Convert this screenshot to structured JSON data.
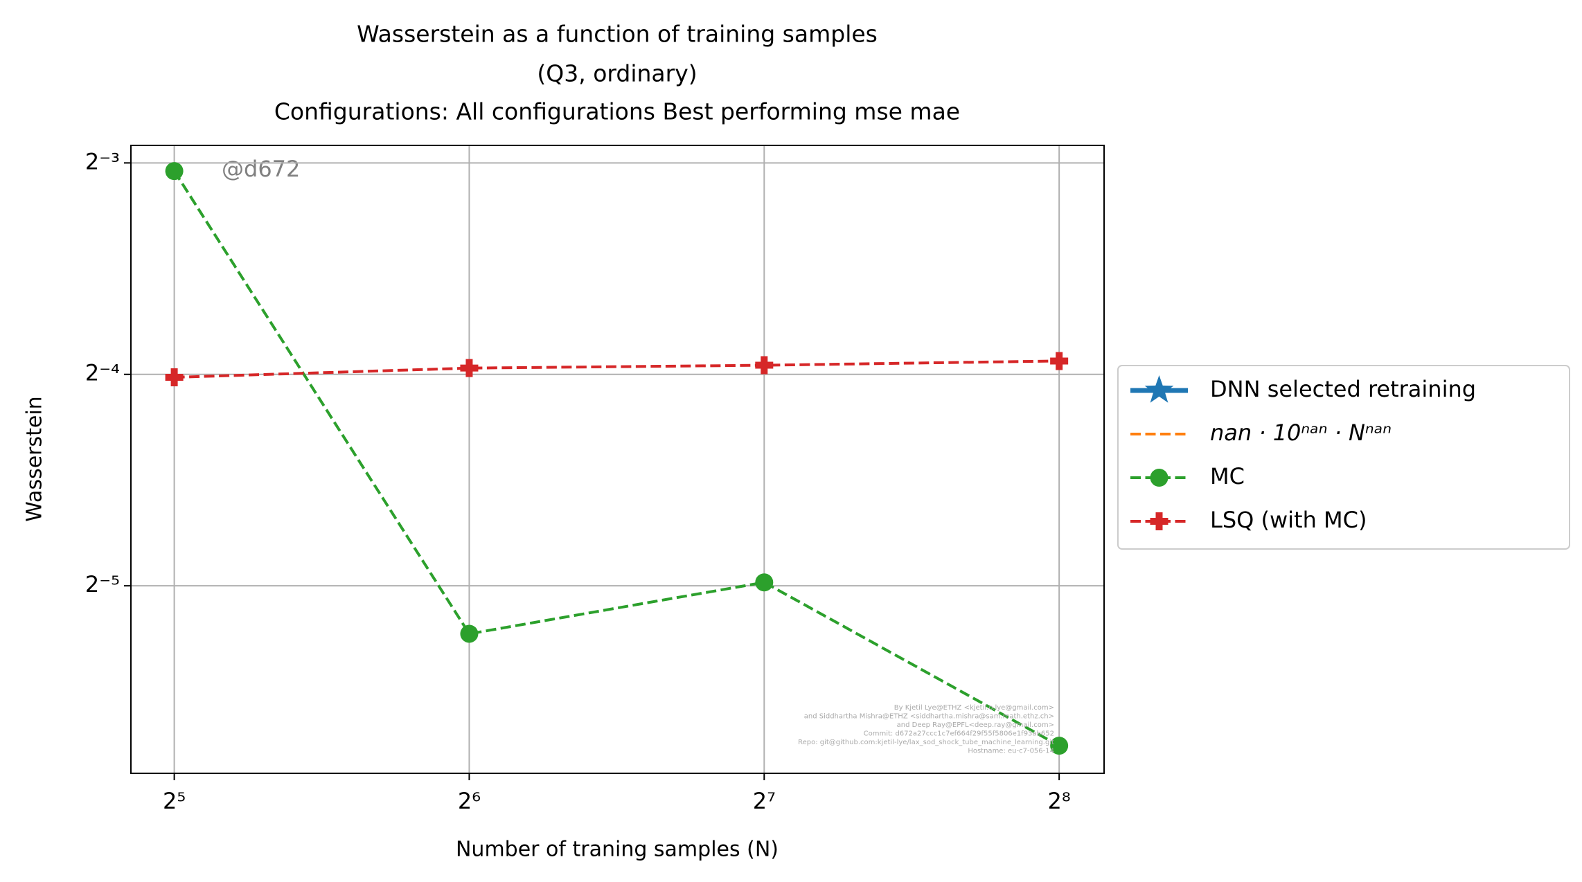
{
  "chart_data": {
    "type": "line",
    "title": [
      "Wasserstein as a function of training samples",
      "(Q3, ordinary)",
      "Configurations: All configurations Best performing mse mae"
    ],
    "xlabel": "Number of traning samples (N)",
    "ylabel": "Wasserstein",
    "x": [
      32,
      64,
      128,
      256
    ],
    "xscale": "log",
    "yscale": "log",
    "logbase": 2,
    "xlim": [
      28.9,
      284.5
    ],
    "ylim": [
      0.0169,
      0.1324
    ],
    "xticks": [
      {
        "value": 32,
        "label": "2⁵"
      },
      {
        "value": 64,
        "label": "2⁶"
      },
      {
        "value": 128,
        "label": "2⁷"
      },
      {
        "value": 256,
        "label": "2⁸"
      }
    ],
    "yticks": [
      {
        "value": 0.125,
        "label": "2⁻³"
      },
      {
        "value": 0.0625,
        "label": "2⁻⁴"
      },
      {
        "value": 0.03125,
        "label": "2⁻⁵"
      }
    ],
    "grid": true,
    "legend": "outside right",
    "series": [
      {
        "name": "DNN selected retraining",
        "color": "#1f77b4",
        "marker": "star",
        "linestyle": "solid",
        "values": [
          null,
          null,
          null,
          null
        ]
      },
      {
        "name": "nan · 10ⁿᵃⁿ · Nⁿᵃⁿ",
        "color": "#ff7f0e",
        "marker": "none",
        "linestyle": "dashed",
        "values": [
          null,
          null,
          null,
          null
        ]
      },
      {
        "name": "MC",
        "color": "#2ca02c",
        "marker": "circle",
        "linestyle": "dashed",
        "values": [
          0.1217,
          0.0267,
          0.0316,
          0.0185
        ]
      },
      {
        "name": "LSQ (with MC)",
        "color": "#d62728",
        "marker": "plus",
        "linestyle": "dashed",
        "values": [
          0.0619,
          0.0638,
          0.0644,
          0.0653
        ]
      }
    ],
    "annotations": [
      "@d672"
    ],
    "footer": [
      "By Kjetil Lye@ETHZ <kjetil.o.lye@gmail.com>",
      "and Siddhartha Mishra@ETHZ <siddhartha.mishra@sam.math.ethz.ch>",
      "and Deep Ray@EPFL<deep.ray@gmail.com>",
      "Commit: d672a27ccc1c7ef664f29f55f5806e1f93ab652",
      "Repo: git@github.com:kjetil-lye/lax_sod_shock_tube_machine_learning.git",
      "Hostname: eu-c7-056-14"
    ]
  }
}
